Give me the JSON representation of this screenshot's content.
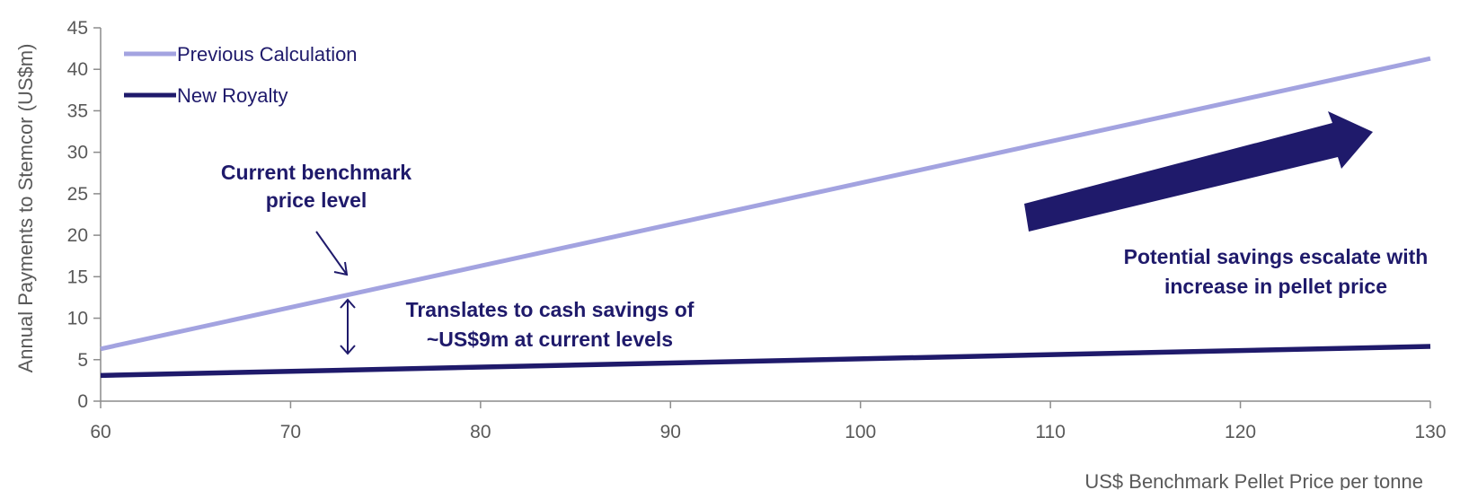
{
  "chart_data": {
    "type": "line",
    "xlabel": "US$ Benchmark Pellet Price per tonne",
    "ylabel": "Annual Payments to Stemcor (US$m)",
    "xlim": [
      60,
      130
    ],
    "ylim": [
      0,
      45
    ],
    "xticks": [
      60,
      70,
      80,
      90,
      100,
      110,
      120,
      130
    ],
    "yticks": [
      0,
      5,
      10,
      15,
      20,
      25,
      30,
      35,
      40,
      45
    ],
    "grid": false,
    "legend_position": "top-left",
    "series": [
      {
        "name": "Previous Calculation",
        "color": "#a3a3e0",
        "x": [
          60,
          130
        ],
        "y": [
          6.3,
          41.3
        ]
      },
      {
        "name": "New Royalty",
        "color": "#1f1a6b",
        "x": [
          60,
          130
        ],
        "y": [
          3.1,
          6.6
        ]
      }
    ],
    "annotations": [
      {
        "id": "benchmark",
        "lines": [
          "Current benchmark",
          "price level"
        ]
      },
      {
        "id": "cash",
        "lines": [
          "Translates to cash savings of",
          "~US$9m at current levels"
        ]
      },
      {
        "id": "escalate",
        "lines": [
          "Potential savings escalate with",
          "increase in pellet price"
        ]
      }
    ],
    "annotation_color": "#1f1a6b"
  }
}
